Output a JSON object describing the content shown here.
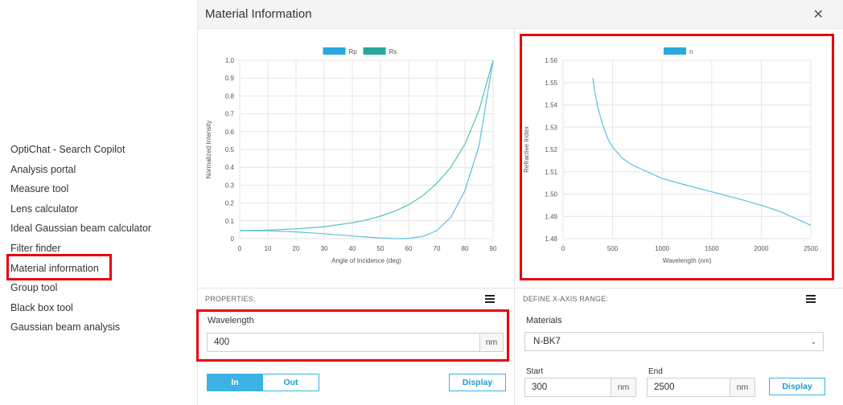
{
  "sidebar": {
    "items": [
      {
        "label": "OptiChat - Search Copilot"
      },
      {
        "label": "Analysis portal"
      },
      {
        "label": "Measure tool"
      },
      {
        "label": "Lens calculator"
      },
      {
        "label": "Ideal Gaussian beam calculator"
      },
      {
        "label": "Filter finder"
      },
      {
        "label": "Material information",
        "highlighted": true
      },
      {
        "label": "Group tool"
      },
      {
        "label": "Black box tool"
      },
      {
        "label": "Gaussian beam analysis"
      }
    ]
  },
  "modal": {
    "title": "Material Information",
    "close_icon": "close-icon"
  },
  "left_properties": {
    "section_label": "PROPERTIES:",
    "wavelength_label": "Wavelength",
    "wavelength_value": "400",
    "unit": "nm",
    "toggle": {
      "in_label": "In",
      "out_label": "Out",
      "selected": "In"
    },
    "display_label": "Display"
  },
  "right_properties": {
    "section_label": "DEFINE X-AXIS RANGE:",
    "materials_label": "Materials",
    "material_value": "N-BK7",
    "start_label": "Start",
    "start_value": "300",
    "start_unit": "nm",
    "end_label": "End",
    "end_value": "2500",
    "end_unit": "nm",
    "display_label": "Display"
  },
  "colors": {
    "accent": "#3db3e5",
    "rp": "#29a8e0",
    "rs": "#26a79a",
    "n": "#29a8e0",
    "highlight": "#e8000b"
  },
  "chart_data": [
    {
      "type": "line",
      "xlabel": "Angle of Incidence (deg)",
      "ylabel": "Normalized Intensity",
      "xlim": [
        0,
        90
      ],
      "ylim": [
        0,
        1.0
      ],
      "xticks": [
        0,
        10,
        20,
        30,
        40,
        50,
        60,
        70,
        80,
        90
      ],
      "yticks": [
        0,
        0.1,
        0.2,
        0.3,
        0.4,
        0.5,
        0.6,
        0.7,
        0.8,
        0.9,
        1.0
      ],
      "ytick_labels": [
        "0",
        "0.1",
        "0.2",
        "0.3",
        "0.4",
        "0.5",
        "0.6",
        "0.7",
        "0.8",
        "0.9",
        "1.0"
      ],
      "legend": "top-center",
      "grid": true,
      "series": [
        {
          "name": "Rp",
          "x": [
            0,
            10,
            20,
            30,
            40,
            45,
            50,
            55,
            57,
            60,
            65,
            70,
            75,
            80,
            85,
            90
          ],
          "values": [
            0.046,
            0.044,
            0.038,
            0.028,
            0.015,
            0.009,
            0.004,
            0.001,
            0.0,
            0.002,
            0.012,
            0.045,
            0.12,
            0.27,
            0.52,
            1.0
          ]
        },
        {
          "name": "Rs",
          "x": [
            0,
            10,
            20,
            30,
            40,
            45,
            50,
            55,
            60,
            65,
            70,
            75,
            80,
            85,
            90
          ],
          "values": [
            0.046,
            0.048,
            0.055,
            0.067,
            0.089,
            0.105,
            0.126,
            0.154,
            0.19,
            0.24,
            0.31,
            0.4,
            0.53,
            0.72,
            1.0
          ]
        }
      ]
    },
    {
      "type": "line",
      "xlabel": "Wavelength (nm)",
      "ylabel": "Refractive Index",
      "xlim": [
        0,
        2500
      ],
      "ylim": [
        1.48,
        1.56
      ],
      "xticks": [
        0,
        500,
        1000,
        1500,
        2000,
        2500
      ],
      "yticks": [
        1.48,
        1.49,
        1.5,
        1.51,
        1.52,
        1.53,
        1.54,
        1.55,
        1.56
      ],
      "ytick_labels": [
        "1.48",
        "1.49",
        "1.50",
        "1.51",
        "1.52",
        "1.53",
        "1.54",
        "1.55",
        "1.56"
      ],
      "legend": "top-center",
      "grid": true,
      "series": [
        {
          "name": "n",
          "x": [
            300,
            320,
            350,
            400,
            450,
            500,
            600,
            700,
            800,
            1000,
            1200,
            1500,
            1800,
            2000,
            2200,
            2500
          ],
          "values": [
            1.552,
            1.546,
            1.539,
            1.531,
            1.525,
            1.521,
            1.516,
            1.513,
            1.511,
            1.507,
            1.5045,
            1.501,
            1.4975,
            1.495,
            1.492,
            1.486
          ]
        }
      ]
    }
  ]
}
